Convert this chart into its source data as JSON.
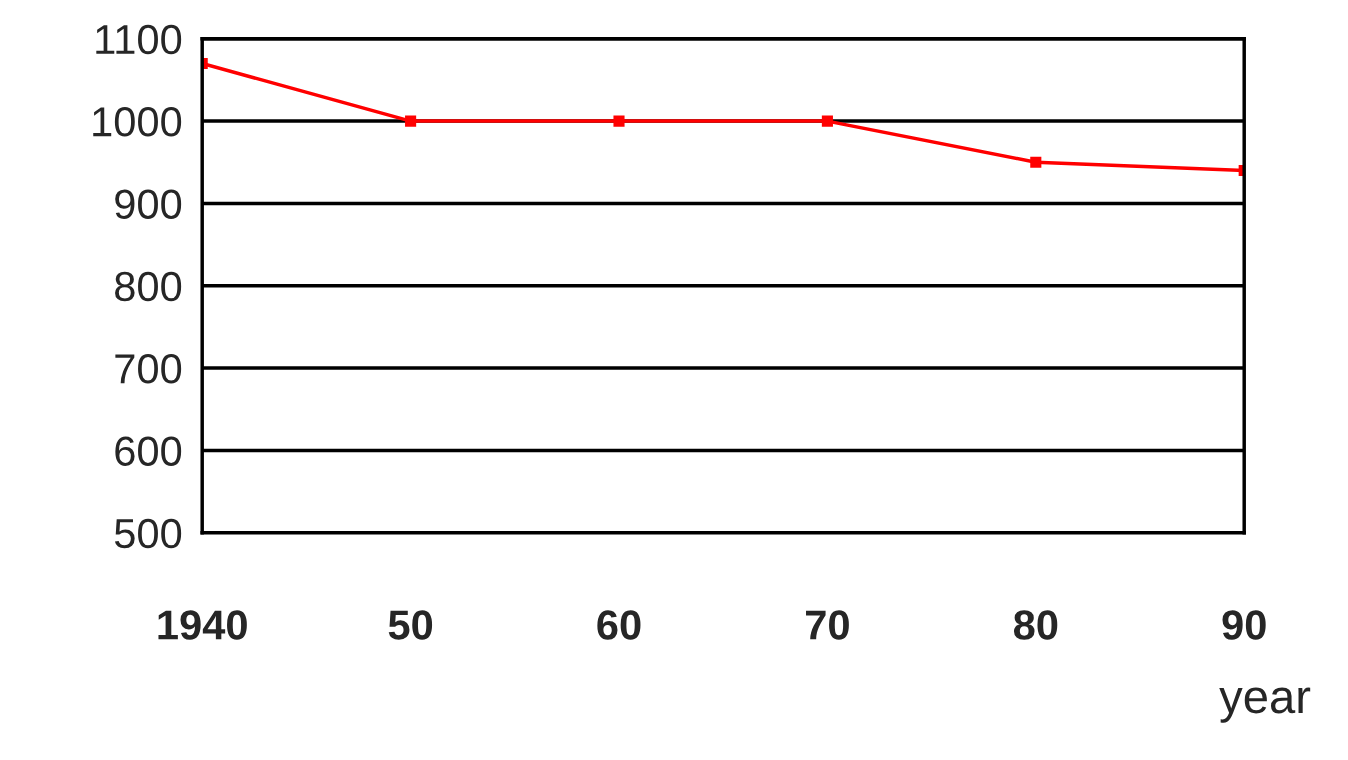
{
  "chart_data": {
    "type": "line",
    "xlabel": "year",
    "x": [
      1940,
      1950,
      1960,
      1970,
      1980,
      1990
    ],
    "series": [
      {
        "color": "#ff0000",
        "values": [
          1070,
          1000,
          1000,
          1000,
          950,
          940
        ]
      }
    ],
    "xlim": [
      1940,
      1990
    ],
    "xticks": [
      1940,
      {
        "value": 1950,
        "label": "50"
      },
      {
        "value": 1960,
        "label": "60"
      },
      {
        "value": 1970,
        "label": "70"
      },
      {
        "value": 1980,
        "label": "80"
      },
      {
        "value": 1990,
        "label": "90"
      }
    ],
    "ylim": [
      500,
      1100
    ],
    "yticks": [
      500,
      600,
      700,
      800,
      900,
      1000,
      1100
    ],
    "grid": "y",
    "marker": "square",
    "line_style": "solid"
  }
}
